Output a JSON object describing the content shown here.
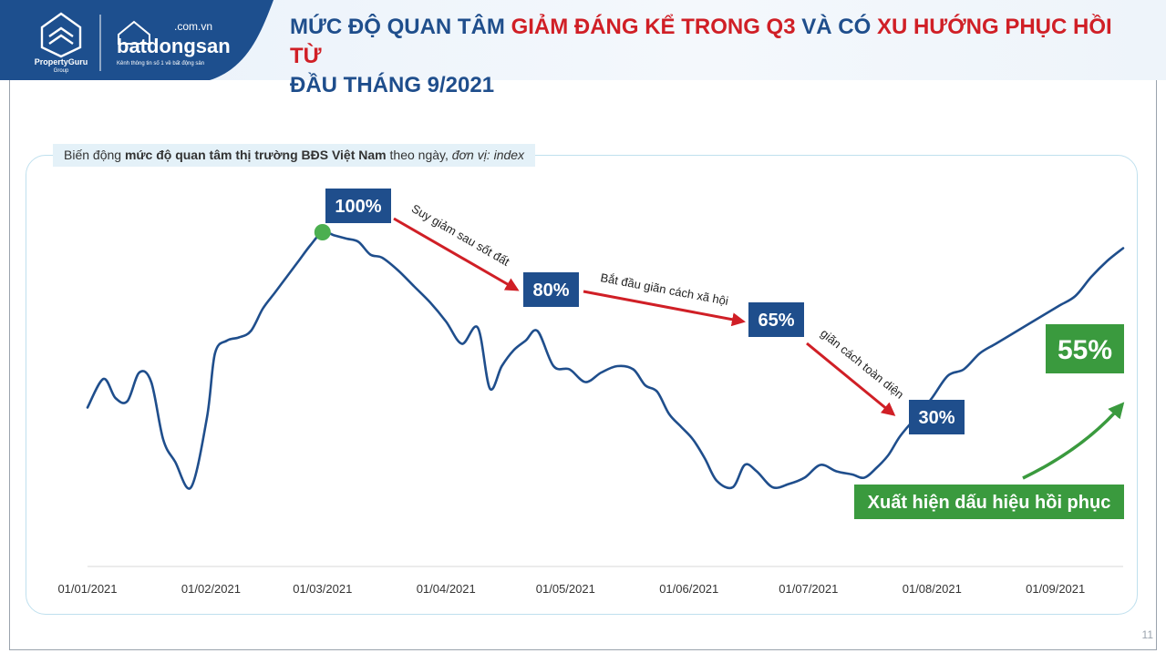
{
  "header": {
    "title_parts": [
      {
        "text": "MỨC ĐỘ QUAN TÂM ",
        "color": "#1f4e8c"
      },
      {
        "text": "GIẢM ĐÁNG KỂ TRONG Q3 ",
        "color": "#d01f26"
      },
      {
        "text": "VÀ CÓ ",
        "color": "#1f4e8c"
      },
      {
        "text": "XU HƯỚNG PHỤC HỒI TỪ",
        "color": "#d01f26"
      },
      {
        "text": "ĐẦU THÁNG 9/2021",
        "color": "#1f4e8c"
      }
    ]
  },
  "logos": {
    "propertyguru_line1": "PropertyGuru",
    "propertyguru_line2": "Group",
    "batdongsan_domain": ".com.vn",
    "batdongsan_name": "batdongsan",
    "batdongsan_tagline": "Kênh thông tin số 1 về bất động sản"
  },
  "subtitle": {
    "part1": "Biến động ",
    "part2": "mức độ quan tâm thị trường BĐS Việt Nam",
    "part3": " theo ngày, ",
    "part4": "đơn vị: index"
  },
  "page_number": "11",
  "colors": {
    "line": "#1f4e8c",
    "label_box": "#1f4e8c",
    "arrow_red": "#d01f26",
    "green": "#3a9a3e",
    "peak_dot": "#4caf50"
  },
  "chart_data": {
    "type": "line",
    "xlabel": "",
    "ylabel": "",
    "x_ticks": [
      "01/01/2021",
      "01/02/2021",
      "01/03/2021",
      "01/04/2021",
      "01/05/2021",
      "01/06/2021",
      "01/07/2021",
      "01/08/2021",
      "01/09/2021"
    ],
    "ylim": [
      0,
      100
    ],
    "series": [
      {
        "x": [
          0,
          4,
          7,
          10,
          13,
          16,
          19,
          22,
          26,
          30,
          32,
          35,
          38,
          41,
          44,
          47,
          50,
          53,
          56,
          59,
          62,
          65,
          68,
          71,
          74,
          78,
          82,
          86,
          90,
          94,
          98,
          101,
          104,
          107,
          110,
          113,
          117,
          121,
          125,
          129,
          133,
          137,
          140,
          143,
          146,
          149,
          152,
          155,
          158,
          162,
          165,
          168,
          172,
          176,
          180,
          184,
          188,
          192,
          195,
          198,
          201,
          204,
          208,
          212,
          216,
          220,
          224,
          228,
          232,
          236,
          240,
          244,
          248,
          252,
          256,
          260
        ],
        "values": [
          45,
          54,
          48,
          47,
          56,
          53,
          35,
          28,
          20,
          42,
          62,
          66,
          67,
          69,
          76,
          81,
          86,
          91,
          96,
          100,
          99,
          98,
          97,
          93,
          92,
          88,
          83,
          78,
          72,
          65,
          70,
          51,
          58,
          63,
          66,
          69,
          58,
          57,
          53,
          56,
          58,
          57,
          52,
          50,
          43,
          39,
          35,
          29,
          22,
          20,
          27,
          25,
          20,
          21,
          23,
          27,
          25,
          24,
          23,
          26,
          30,
          36,
          42,
          48,
          55,
          57,
          62,
          65,
          68,
          71,
          74,
          77,
          80,
          86,
          91,
          95
        ],
        "y_range_note": ""
      }
    ],
    "annotations": [
      {
        "text": "100%",
        "style": "box-blue"
      },
      {
        "text": "80%",
        "style": "box-blue"
      },
      {
        "text": "65%",
        "style": "box-blue"
      },
      {
        "text": "30%",
        "style": "box-blue"
      },
      {
        "text": "55%",
        "style": "box-green"
      },
      {
        "text": "Suy giảm sau sốt đất",
        "style": "arrow-text"
      },
      {
        "text": "Bắt đầu giãn cách xã hội",
        "style": "arrow-text"
      },
      {
        "text": "giãn cách toàn diện",
        "style": "arrow-text"
      },
      {
        "text": "Xuất hiện dấu hiệu hồi phục",
        "style": "box-green"
      }
    ]
  }
}
